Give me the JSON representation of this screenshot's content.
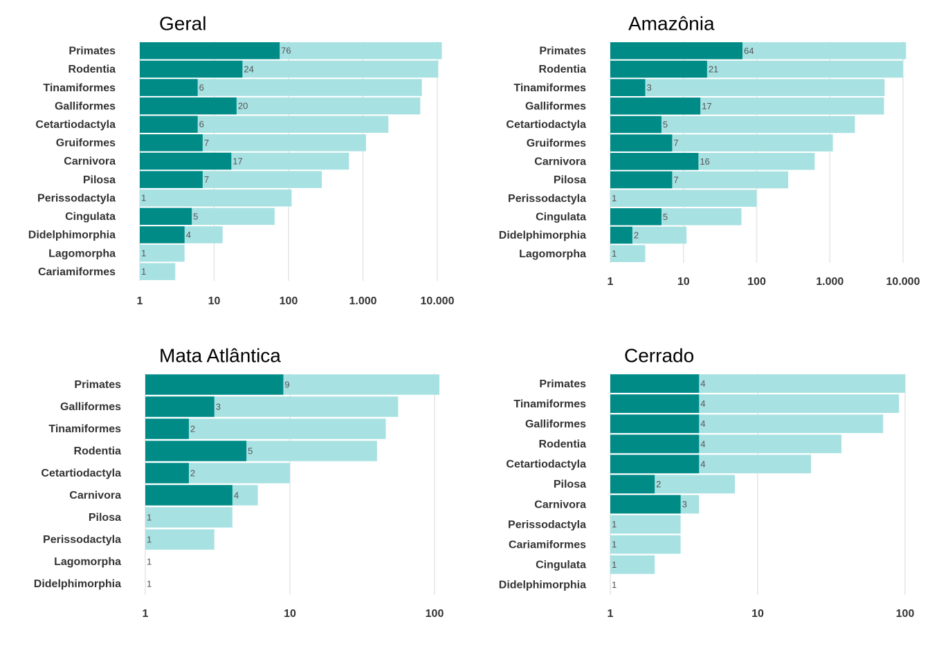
{
  "colors": {
    "dark": "#008B87",
    "light": "#A8E1E2"
  },
  "chart_data": [
    {
      "type": "bar",
      "orientation": "horizontal",
      "xscale": "log10",
      "title": "Geral",
      "categories": [
        "Primates",
        "Rodentia",
        "Tinamiformes",
        "Galliformes",
        "Cetartiodactyla",
        "Gruiformes",
        "Carnivora",
        "Pilosa",
        "Perissodactyla",
        "Cingulata",
        "Didelphimorphia",
        "Lagomorpha",
        "Cariamiformes"
      ],
      "series": [
        {
          "values": [
            11500,
            10300,
            6200,
            5900,
            2200,
            1100,
            650,
            280,
            110,
            65,
            13,
            4,
            3
          ]
        },
        {
          "values": [
            76,
            24,
            6,
            20,
            6,
            7,
            17,
            7,
            1,
            5,
            4,
            1,
            1
          ]
        }
      ],
      "bar_labels": [
        "76",
        "24",
        "6",
        "20",
        "6",
        "7",
        "17",
        "7",
        "1",
        "5",
        "4",
        "1",
        "1"
      ],
      "xticks": [
        1,
        10,
        100,
        1000,
        10000
      ],
      "xtick_labels": [
        "1",
        "10",
        "100",
        "1.000",
        "10.000"
      ],
      "xlim": [
        1,
        10000
      ]
    },
    {
      "type": "bar",
      "orientation": "horizontal",
      "xscale": "log10",
      "title": "Amazônia",
      "categories": [
        "Primates",
        "Rodentia",
        "Tinamiformes",
        "Galliformes",
        "Cetartiodactyla",
        "Gruiformes",
        "Carnivora",
        "Pilosa",
        "Perissodactyla",
        "Cingulata",
        "Didelphimorphia",
        "Lagomorpha"
      ],
      "series": [
        {
          "values": [
            11000,
            10000,
            5600,
            5500,
            2200,
            1100,
            620,
            270,
            100,
            62,
            11,
            3
          ]
        },
        {
          "values": [
            64,
            21,
            3,
            17,
            5,
            7,
            16,
            7,
            1,
            5,
            2,
            1
          ]
        }
      ],
      "bar_labels": [
        "64",
        "21",
        "3",
        "17",
        "5",
        "7",
        "16",
        "7",
        "1",
        "5",
        "2",
        "1"
      ],
      "xticks": [
        1,
        10,
        100,
        1000,
        10000
      ],
      "xtick_labels": [
        "1",
        "10",
        "100",
        "1.000",
        "10.000"
      ],
      "xlim": [
        1,
        10000
      ]
    },
    {
      "type": "bar",
      "orientation": "horizontal",
      "xscale": "log10",
      "title": "Mata Atlântica",
      "categories": [
        "Primates",
        "Galliformes",
        "Tinamiformes",
        "Rodentia",
        "Cetartiodactyla",
        "Carnivora",
        "Pilosa",
        "Perissodactyla",
        "Lagomorpha",
        "Didelphimorphia"
      ],
      "series": [
        {
          "values": [
            108,
            56,
            46,
            40,
            10,
            6,
            4,
            3,
            1,
            1
          ]
        },
        {
          "values": [
            9,
            3,
            2,
            5,
            2,
            4,
            1,
            1,
            1,
            1
          ]
        }
      ],
      "bar_labels": [
        "9",
        "3",
        "2",
        "5",
        "2",
        "4",
        "1",
        "1",
        "1",
        "1"
      ],
      "xticks": [
        1,
        10,
        100
      ],
      "xtick_labels": [
        "1",
        "10",
        "100"
      ],
      "xlim": [
        1,
        100
      ]
    },
    {
      "type": "bar",
      "orientation": "horizontal",
      "xscale": "log10",
      "title": "Cerrado",
      "categories": [
        "Primates",
        "Tinamiformes",
        "Galliformes",
        "Rodentia",
        "Cetartiodactyla",
        "Pilosa",
        "Carnivora",
        "Perissodactyla",
        "Cariamiformes",
        "Cingulata",
        "Didelphimorphia"
      ],
      "series": [
        {
          "values": [
            100,
            91,
            71,
            37,
            23,
            7,
            4,
            3,
            3,
            2,
            1
          ]
        },
        {
          "values": [
            4,
            4,
            4,
            4,
            4,
            2,
            3,
            1,
            1,
            1,
            1
          ]
        }
      ],
      "bar_labels": [
        "4",
        "4",
        "4",
        "4",
        "4",
        "2",
        "3",
        "1",
        "1",
        "1",
        "1"
      ],
      "xticks": [
        1,
        10,
        100
      ],
      "xtick_labels": [
        "1",
        "10",
        "100"
      ],
      "xlim": [
        1,
        100
      ]
    }
  ]
}
